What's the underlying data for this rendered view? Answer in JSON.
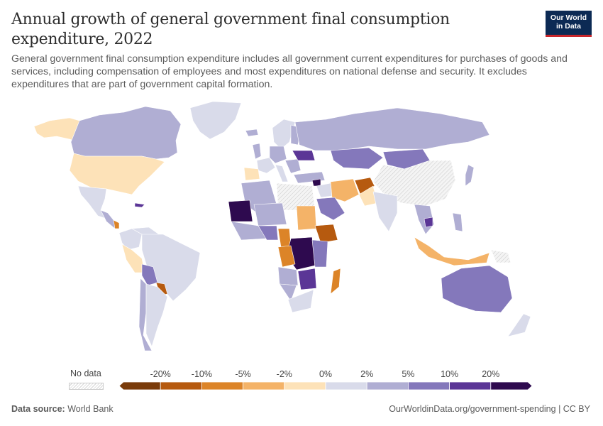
{
  "header": {
    "title": "Annual growth of general government final consumption expenditure, 2022",
    "subtitle": "General government final consumption expenditure includes all government current expenditures for purchases of goods and services, including compensation of employees and most expenditures on national defense and security. It excludes expenditures that are part of government capital formation."
  },
  "logo": {
    "line1": "Our World",
    "line2": "in Data"
  },
  "legend": {
    "no_data_label": "No data",
    "bins": [
      {
        "label": "",
        "color": "#7a3b0a"
      },
      {
        "label": "-20%",
        "color": "#b65a0f"
      },
      {
        "label": "-10%",
        "color": "#dc8428"
      },
      {
        "label": "-5%",
        "color": "#f4b368"
      },
      {
        "label": "-2%",
        "color": "#fde2b8"
      },
      {
        "label": "0%",
        "color": "#d9dbea"
      },
      {
        "label": "2%",
        "color": "#b0aed3"
      },
      {
        "label": "5%",
        "color": "#8478bb"
      },
      {
        "label": "10%",
        "color": "#5b3696"
      },
      {
        "label": "20%",
        "color": "#2e0a4f"
      }
    ]
  },
  "footer": {
    "source_label": "Data source:",
    "source_value": "World Bank",
    "url": "OurWorldinData.org/government-spending | CC BY"
  },
  "colors": {
    "no_data": "#ececec",
    "bin_m20plus": "#7a3b0a",
    "bin_m10": "#b65a0f",
    "bin_m5": "#dc8428",
    "bin_m2": "#f4b368",
    "bin_0": "#fde2b8",
    "bin_2": "#d9dbea",
    "bin_5": "#b0aed3",
    "bin_10": "#8478bb",
    "bin_20": "#5b3696",
    "bin_20plus": "#2e0a4f"
  }
}
